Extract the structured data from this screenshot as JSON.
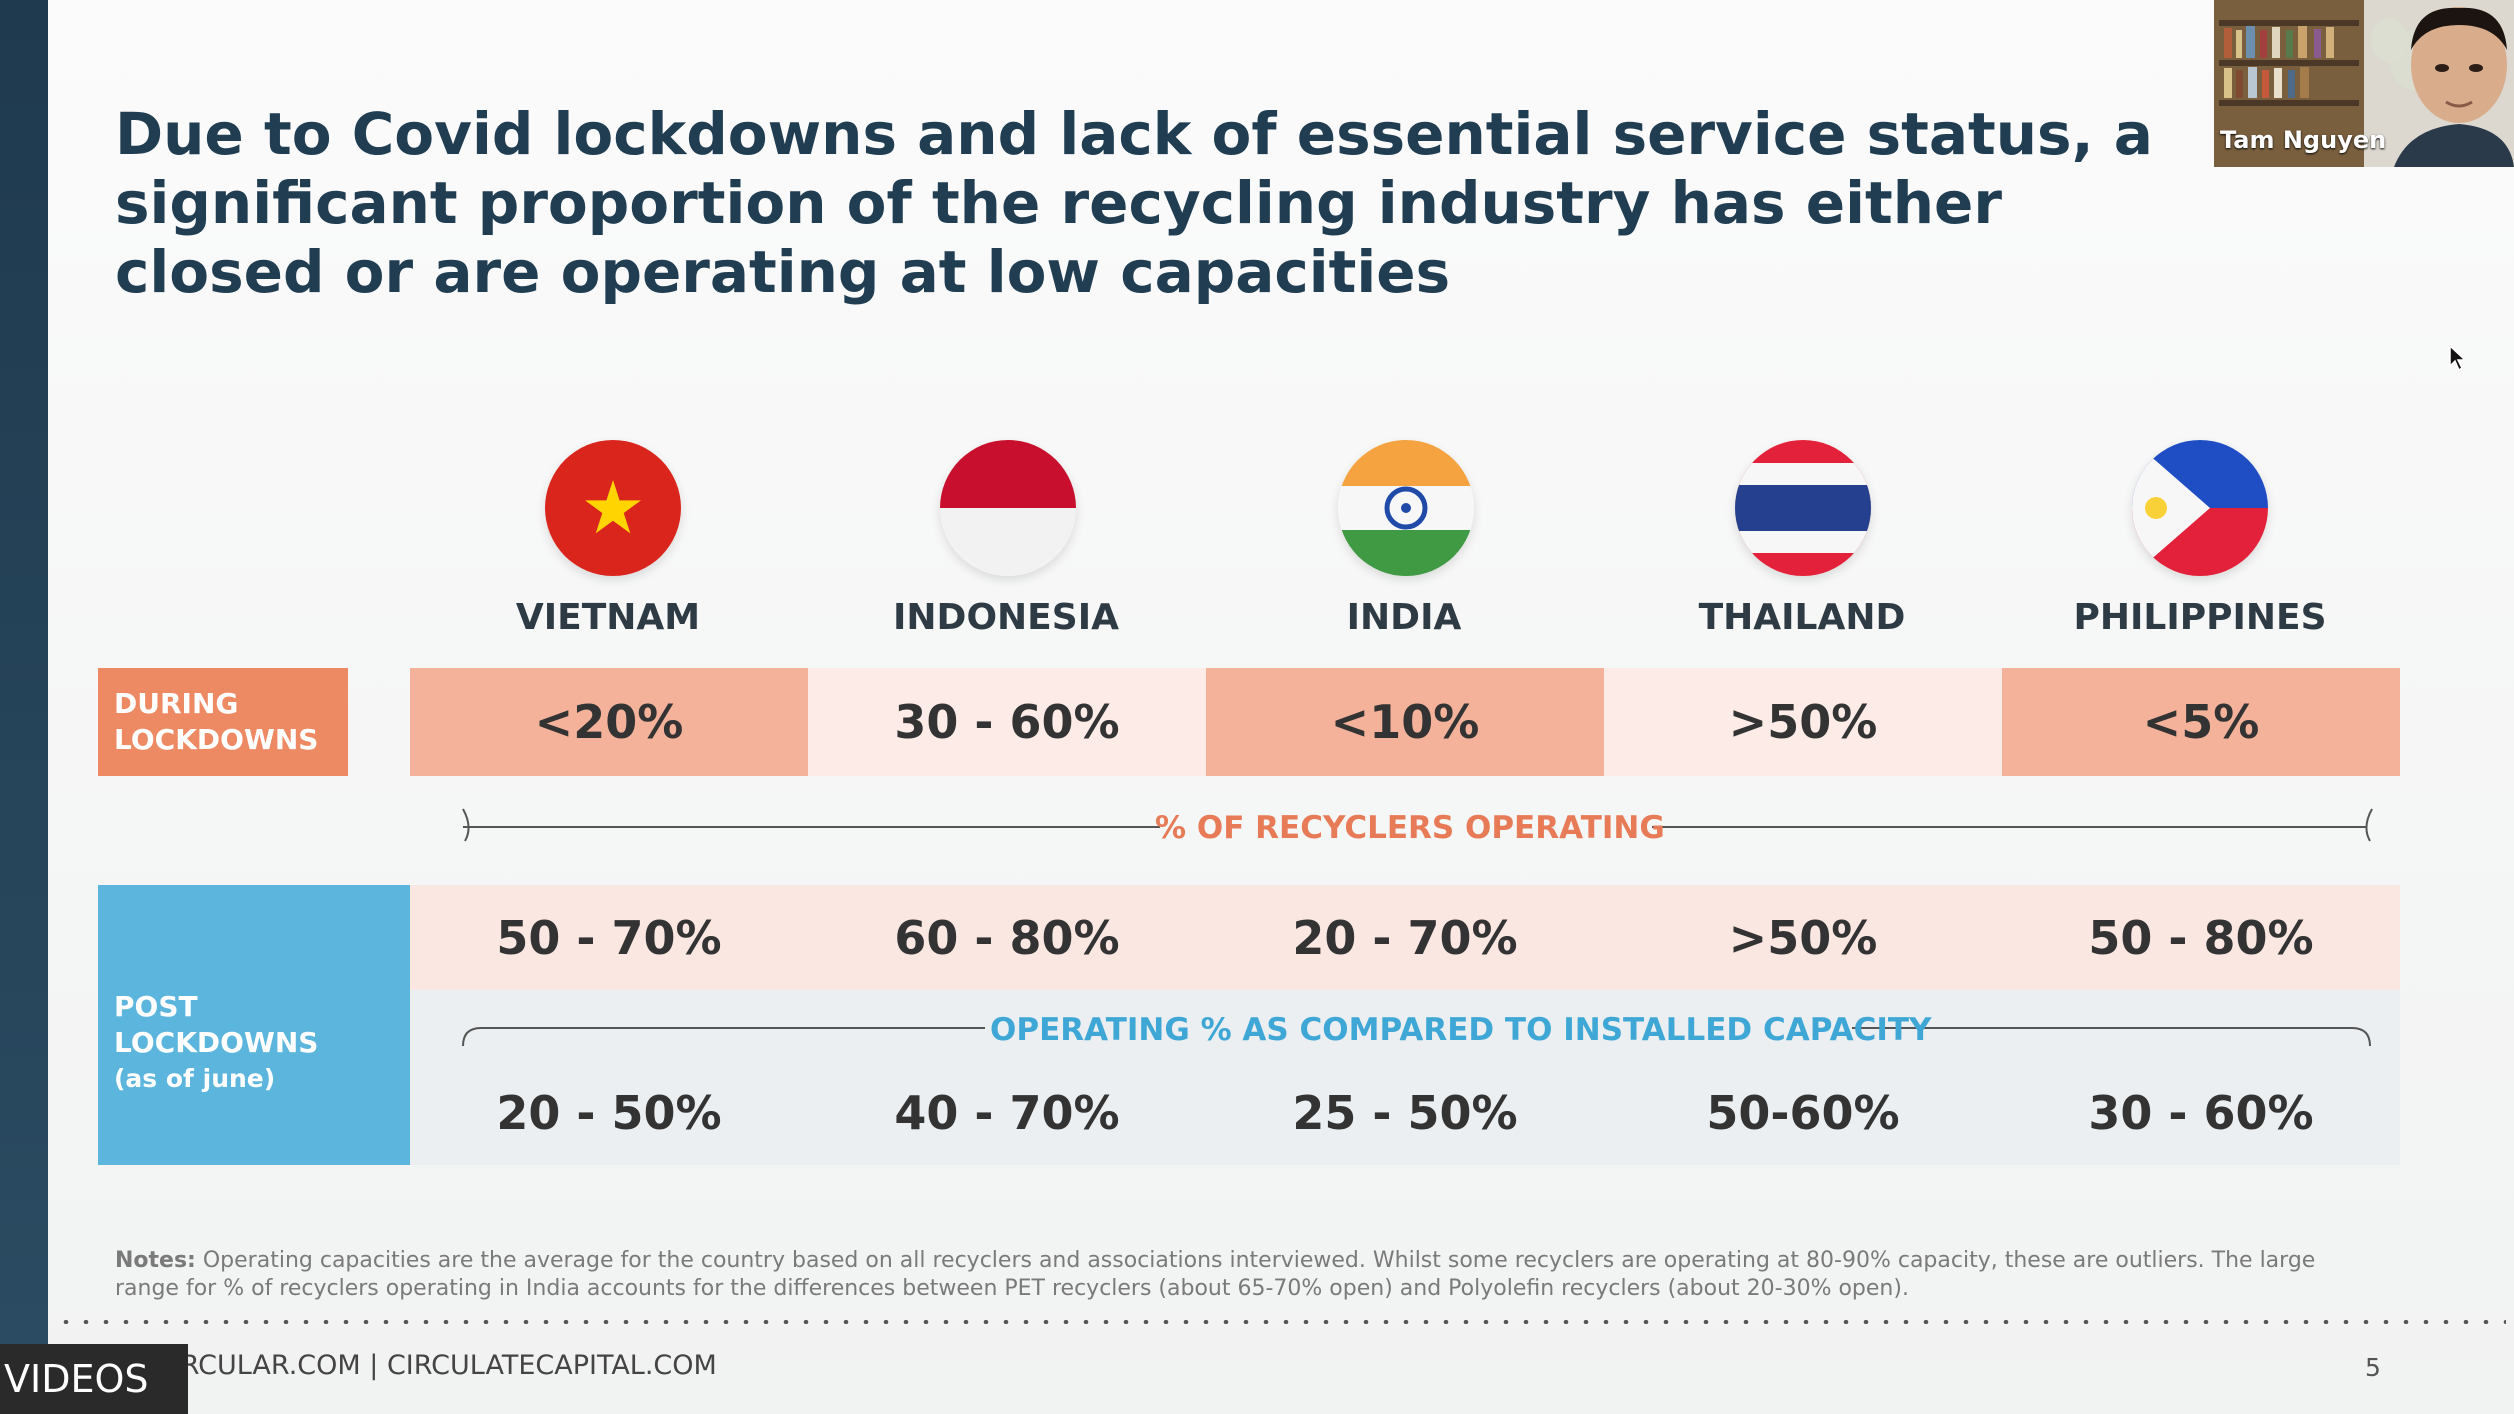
{
  "slide": {
    "title": "Due to Covid lockdowns and lack of essential service status, a significant proportion of the recycling industry has either closed or are operating at low capacities",
    "countries": [
      {
        "name": "VIETNAM",
        "flag_icon": "vietnam-flag-icon"
      },
      {
        "name": "INDONESIA",
        "flag_icon": "indonesia-flag-icon"
      },
      {
        "name": "INDIA",
        "flag_icon": "india-flag-icon"
      },
      {
        "name": "THAILAND",
        "flag_icon": "thailand-flag-icon"
      },
      {
        "name": "PHILIPPINES",
        "flag_icon": "philippines-flag-icon"
      }
    ],
    "during": {
      "label": "DURING LOCKDOWNS",
      "values": [
        "<20%",
        "30 - 60%",
        "<10%",
        ">50%",
        "<5%"
      ]
    },
    "recyclers_label": "% OF RECYCLERS OPERATING",
    "post": {
      "label": "POST LOCKDOWNS",
      "sublabel": "(as of june)",
      "recyclers_values": [
        "50 - 70%",
        "60 - 80%",
        "20 - 70%",
        ">50%",
        "50 - 80%"
      ],
      "capacity_label": "OPERATING % AS COMPARED TO INSTALLED CAPACITY",
      "capacity_values": [
        "20 - 50%",
        "40 - 70%",
        "25 - 50%",
        "50-60%",
        "30 - 60%"
      ]
    },
    "notes_heading": "Notes:",
    "notes_text": "Operating capacities are the average for the country based on all recyclers and associations interviewed.  Whilst some recyclers are operating at 80-90% capacity, these are outliers. The large range for % of recyclers operating in India accounts for the differences between PET recyclers (about 65-70% open) and Polyolefin recyclers (about 20-30% open).",
    "footer": "GACIRCULAR.COM  |  CIRCULATECAPITAL.COM",
    "page_number": "5"
  },
  "overlay": {
    "videos_label": "VIDEOS",
    "participant_name": "Tam Nguyen"
  },
  "colors": {
    "title": "#203d52",
    "during_label_bg": "#ee8a63",
    "during_dark_cell": "#f5b29b",
    "during_light_cell": "#fcebe6",
    "post_label_bg": "#5bb5dd",
    "recyclers_text": "#e87b57",
    "capacity_text": "#3fa7d6"
  }
}
